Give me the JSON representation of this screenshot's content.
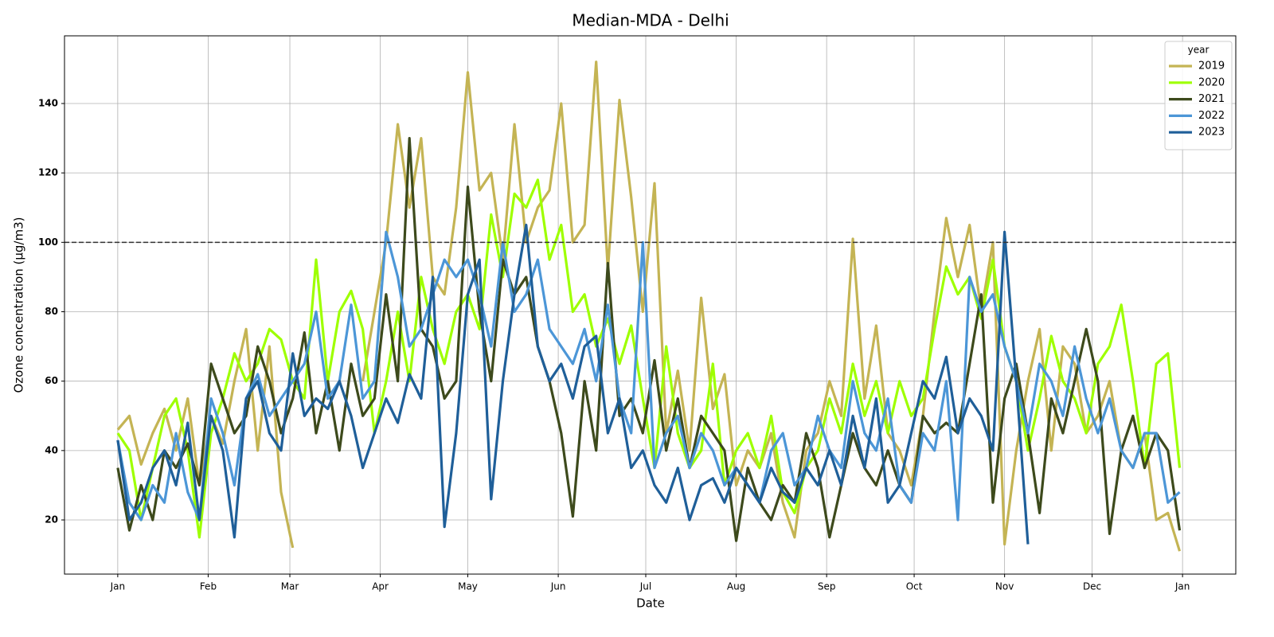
{
  "chart_data": {
    "type": "line",
    "title": "Median-MDA - Delhi",
    "x_label": "Date",
    "y_label": "Ozone concentration (µg/m3)",
    "x": [
      0,
      4,
      8,
      12,
      16,
      20,
      24,
      28,
      32,
      36,
      40,
      44,
      48,
      52,
      56,
      60,
      64,
      68,
      72,
      76,
      80,
      84,
      88,
      92,
      96,
      100,
      104,
      108,
      112,
      116,
      120,
      124,
      128,
      132,
      136,
      140,
      144,
      148,
      152,
      156,
      160,
      164,
      168,
      172,
      176,
      180,
      184,
      188,
      192,
      196,
      200,
      204,
      208,
      212,
      216,
      220,
      224,
      228,
      232,
      236,
      240,
      244,
      248,
      252,
      256,
      260,
      264,
      268,
      272,
      276,
      280,
      284,
      288,
      292,
      296,
      300,
      304,
      308,
      312,
      316,
      320,
      324,
      328,
      332,
      336,
      340,
      344,
      348,
      352,
      356,
      360,
      364
    ],
    "xlim": [
      -18.25,
      383.25
    ],
    "xticks": [
      {
        "value": 0,
        "label": "Jan"
      },
      {
        "value": 31,
        "label": "Feb"
      },
      {
        "value": 59,
        "label": "Mar"
      },
      {
        "value": 90,
        "label": "Apr"
      },
      {
        "value": 120,
        "label": "May"
      },
      {
        "value": 151,
        "label": "Jun"
      },
      {
        "value": 181,
        "label": "Jul"
      },
      {
        "value": 212,
        "label": "Aug"
      },
      {
        "value": 243,
        "label": "Sep"
      },
      {
        "value": 273,
        "label": "Oct"
      },
      {
        "value": 304,
        "label": "Nov"
      },
      {
        "value": 334,
        "label": "Dec"
      },
      {
        "value": 365,
        "label": "Jan"
      }
    ],
    "ylim": [
      4.4,
      159.5
    ],
    "yticks": [
      20,
      40,
      60,
      80,
      100,
      120,
      140
    ],
    "grid": true,
    "reference_line": 100,
    "legend_title": "year",
    "legend_position": "upper right",
    "series": [
      {
        "name": "2019",
        "color": "#c4b454",
        "values": [
          46,
          50,
          36,
          45,
          52,
          40,
          55,
          30,
          50,
          42,
          60,
          75,
          40,
          70,
          28,
          12,
          null,
          null,
          null,
          null,
          null,
          60,
          80,
          100,
          134,
          110,
          130,
          90,
          85,
          110,
          149,
          115,
          120,
          95,
          134,
          100,
          110,
          115,
          140,
          100,
          105,
          152,
          92,
          141,
          113,
          80,
          117,
          45,
          63,
          40,
          84,
          52,
          62,
          30,
          40,
          35,
          45,
          25,
          15,
          40,
          45,
          60,
          50,
          101,
          55,
          76,
          45,
          40,
          30,
          50,
          80,
          107,
          90,
          105,
          80,
          100,
          13,
          40,
          60,
          75,
          40,
          70,
          65,
          45,
          50,
          60,
          40,
          35,
          45,
          20,
          22,
          11
        ]
      },
      {
        "name": "2020",
        "color": "#9eff00",
        "values": [
          45,
          40,
          20,
          35,
          50,
          55,
          40,
          15,
          45,
          55,
          68,
          60,
          65,
          75,
          72,
          60,
          55,
          95,
          60,
          80,
          86,
          75,
          45,
          60,
          80,
          60,
          90,
          75,
          65,
          80,
          85,
          75,
          108,
          90,
          114,
          110,
          118,
          95,
          105,
          80,
          85,
          70,
          78,
          65,
          76,
          55,
          35,
          70,
          45,
          35,
          40,
          65,
          30,
          40,
          45,
          35,
          50,
          28,
          22,
          35,
          40,
          55,
          45,
          65,
          50,
          60,
          45,
          60,
          50,
          55,
          75,
          93,
          85,
          90,
          78,
          95,
          70,
          60,
          40,
          55,
          73,
          60,
          55,
          45,
          65,
          70,
          82,
          60,
          35,
          65,
          68,
          35
        ]
      },
      {
        "name": "2021",
        "color": "#3d4a1c",
        "values": [
          35,
          17,
          30,
          20,
          40,
          35,
          42,
          30,
          65,
          55,
          45,
          50,
          70,
          60,
          45,
          55,
          74,
          45,
          60,
          40,
          65,
          50,
          55,
          85,
          60,
          130,
          75,
          70,
          55,
          60,
          116,
          80,
          60,
          95,
          85,
          90,
          70,
          60,
          45,
          21,
          60,
          40,
          94,
          50,
          55,
          45,
          66,
          40,
          55,
          35,
          50,
          45,
          40,
          14,
          35,
          25,
          20,
          30,
          25,
          45,
          35,
          15,
          30,
          45,
          35,
          30,
          40,
          30,
          25,
          50,
          45,
          48,
          45,
          65,
          85,
          25,
          55,
          65,
          45,
          22,
          55,
          45,
          60,
          75,
          60,
          16,
          40,
          50,
          35,
          45,
          40,
          17
        ]
      },
      {
        "name": "2022",
        "color": "#4c96d7",
        "values": [
          43,
          25,
          20,
          30,
          25,
          45,
          28,
          20,
          55,
          45,
          30,
          55,
          62,
          50,
          55,
          60,
          65,
          80,
          55,
          60,
          82,
          55,
          60,
          103,
          90,
          70,
          75,
          85,
          95,
          90,
          95,
          85,
          70,
          100,
          80,
          85,
          95,
          75,
          70,
          65,
          75,
          60,
          82,
          55,
          45,
          100,
          35,
          45,
          50,
          35,
          45,
          40,
          30,
          35,
          30,
          25,
          40,
          45,
          30,
          35,
          50,
          40,
          35,
          60,
          45,
          40,
          55,
          30,
          25,
          45,
          40,
          60,
          20,
          90,
          80,
          85,
          70,
          60,
          45,
          65,
          60,
          50,
          70,
          55,
          45,
          55,
          40,
          35,
          45,
          45,
          25,
          28
        ]
      },
      {
        "name": "2023",
        "color": "#1f5f99",
        "values": [
          43,
          20,
          25,
          35,
          40,
          30,
          48,
          20,
          50,
          40,
          15,
          55,
          60,
          45,
          40,
          68,
          50,
          55,
          52,
          60,
          50,
          35,
          45,
          55,
          48,
          62,
          55,
          90,
          18,
          45,
          85,
          95,
          26,
          60,
          85,
          105,
          70,
          60,
          65,
          55,
          70,
          73,
          45,
          55,
          35,
          40,
          30,
          25,
          35,
          20,
          30,
          32,
          25,
          35,
          30,
          25,
          35,
          28,
          25,
          35,
          30,
          40,
          30,
          50,
          35,
          55,
          25,
          30,
          45,
          60,
          55,
          67,
          45,
          55,
          50,
          40,
          103,
          60,
          13,
          null,
          null,
          null,
          null,
          null,
          null,
          null,
          null,
          null,
          null,
          null,
          null,
          null
        ]
      }
    ]
  }
}
